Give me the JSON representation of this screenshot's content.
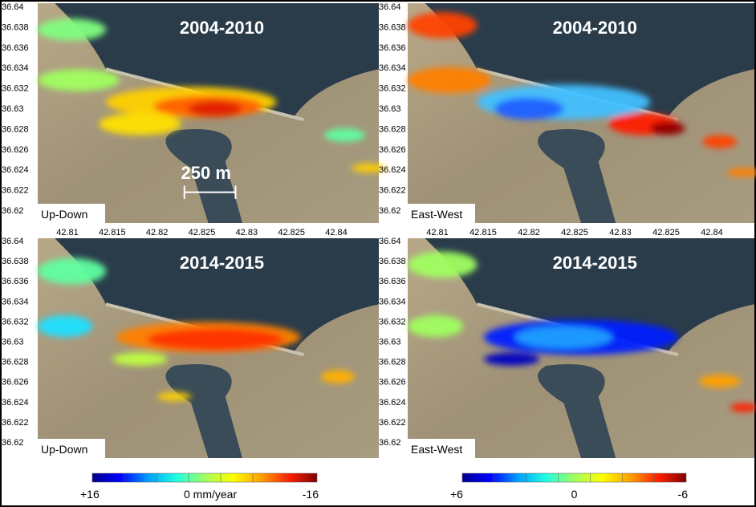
{
  "panels": [
    {
      "title": "2004-2010",
      "component": "Up-Down",
      "scale_label": "250 m",
      "pattern": "ud1"
    },
    {
      "title": "2004-2010",
      "component": "East-West",
      "pattern": "ew1"
    },
    {
      "title": "2014-2015",
      "component": "Up-Down",
      "pattern": "ud2"
    },
    {
      "title": "2014-2015",
      "component": "East-West",
      "pattern": "ew2"
    }
  ],
  "y_ticks": [
    "36.64",
    "36.638",
    "36.636",
    "36.634",
    "36.632",
    "36.63",
    "36.628",
    "36.626",
    "36.624",
    "36.622",
    "36.62"
  ],
  "x_ticks": [
    "42.81",
    "42.815",
    "42.82",
    "42.825",
    "42.83",
    "42.825",
    "42.84"
  ],
  "colorbars": [
    {
      "name": "up-down",
      "min_label": "+16",
      "mid_label": "0 mm/year",
      "max_label": "-16",
      "range": [
        16,
        -16
      ],
      "units": "mm/year"
    },
    {
      "name": "east-west",
      "min_label": "+6",
      "mid_label": "0",
      "max_label": "-6",
      "range": [
        6,
        -6
      ]
    }
  ],
  "colors": {
    "jet": [
      "#00008f",
      "#0000ff",
      "#00a0ff",
      "#20ffe0",
      "#a0ff60",
      "#ffff00",
      "#ffa000",
      "#ff2000",
      "#800000"
    ],
    "water": "#2a3c4a",
    "land": "#a89a78"
  }
}
